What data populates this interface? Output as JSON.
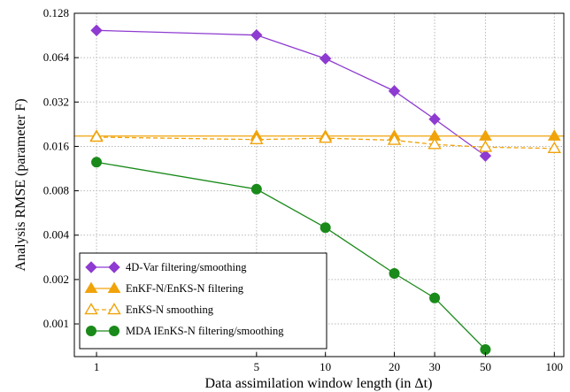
{
  "chart_data": {
    "type": "line",
    "xlabel": "Data assimilation window length (in Δt)",
    "ylabel": "Analysis RMSE (parameter F)",
    "xscale": "log",
    "yscale": "log2",
    "xlim": [
      0.8,
      110
    ],
    "ylim": [
      0.0006,
      0.128
    ],
    "x_ticks": [
      1,
      5,
      10,
      20,
      30,
      50,
      100
    ],
    "x_tick_labels": [
      "1",
      "5",
      "10",
      "20",
      "30",
      "50",
      "100"
    ],
    "y_ticks": [
      0.001,
      0.002,
      0.004,
      0.008,
      0.016,
      0.032,
      0.064,
      0.128
    ],
    "y_tick_labels": [
      "0.001",
      "0.002",
      "0.004",
      "0.008",
      "0.016",
      "0.032",
      "0.064",
      "0.128"
    ],
    "grid": true,
    "legend_position": "bottom-left",
    "series": [
      {
        "name": "4D-Var filtering/smoothing",
        "color": "#8e3bd1",
        "marker": "diamond",
        "line": "solid",
        "fill": true,
        "x": [
          1,
          5,
          10,
          20,
          30,
          50
        ],
        "y": [
          0.098,
          0.091,
          0.063,
          0.038,
          0.0245,
          0.0138
        ]
      },
      {
        "name": "EnKF-N/EnKS-N filtering",
        "color": "#f0a30a",
        "marker": "triangle",
        "line": "solid",
        "fill": true,
        "x": [
          1,
          5,
          10,
          20,
          30,
          50,
          100
        ],
        "y": [
          0.0188,
          0.0188,
          0.0188,
          0.0188,
          0.0188,
          0.0188,
          0.0188
        ]
      },
      {
        "name": "EnKS-N smoothing",
        "color": "#f0a30a",
        "marker": "triangle",
        "line": "dashed",
        "fill": false,
        "x": [
          1,
          5,
          10,
          20,
          30,
          50,
          100
        ],
        "y": [
          0.0185,
          0.0178,
          0.0182,
          0.0176,
          0.0165,
          0.0158,
          0.0155
        ]
      },
      {
        "name": "MDA IEnKS-N filtering/smoothing",
        "color": "#1a8a1a",
        "marker": "circle",
        "line": "solid",
        "fill": true,
        "x": [
          1,
          5,
          10,
          20,
          30,
          50
        ],
        "y": [
          0.0125,
          0.0082,
          0.0045,
          0.0022,
          0.0015,
          0.00067
        ]
      }
    ]
  }
}
